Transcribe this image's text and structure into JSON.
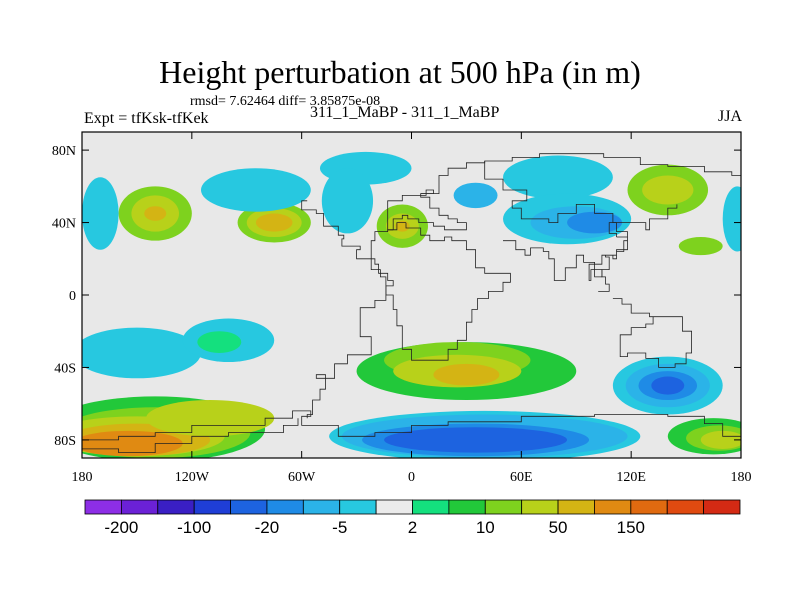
{
  "chart_data": {
    "type": "heatmap",
    "title": "Height perturbation at 500 hPa (in m)",
    "stats": "rmsd= 7.62464 diff= 3.85875e-08",
    "left_label": "Expt = tfKsk-tfKek",
    "center_label": "311_1_MaBP - 311_1_MaBP",
    "right_label": "JJA",
    "x_ticks": [
      {
        "value": -180,
        "label": "180"
      },
      {
        "value": -120,
        "label": "120W"
      },
      {
        "value": -60,
        "label": "60W"
      },
      {
        "value": 0,
        "label": "0"
      },
      {
        "value": 60,
        "label": "60E"
      },
      {
        "value": 120,
        "label": "120E"
      },
      {
        "value": 180,
        "label": "180"
      }
    ],
    "y_ticks": [
      {
        "value": 80,
        "label": "80N"
      },
      {
        "value": 40,
        "label": "40N"
      },
      {
        "value": 0,
        "label": "0"
      },
      {
        "value": -40,
        "label": "40S"
      },
      {
        "value": -80,
        "label": "80S"
      }
    ],
    "xlim": [
      -180,
      180
    ],
    "ylim": [
      -90,
      90
    ],
    "colorbar": {
      "colors": [
        "#8d2ee6",
        "#6b21d6",
        "#3a1fc4",
        "#1f3ed6",
        "#1d63e0",
        "#1f8be6",
        "#2bb3e8",
        "#27c8e0",
        "#ebebeb",
        "#14e07e",
        "#22c83a",
        "#7ed21e",
        "#b8d11a",
        "#d4b414",
        "#e08a12",
        "#e06a10",
        "#e04a10",
        "#d42a14"
      ],
      "labels": [
        {
          "after_box": 1,
          "text": "-200"
        },
        {
          "after_box": 3,
          "text": "-100"
        },
        {
          "after_box": 5,
          "text": "-20"
        },
        {
          "after_box": 7,
          "text": "-5"
        },
        {
          "after_box": 9,
          "text": "2"
        },
        {
          "after_box": 11,
          "text": "10"
        },
        {
          "after_box": 13,
          "text": "50"
        },
        {
          "after_box": 15,
          "text": "150"
        }
      ]
    },
    "field_blobs": [
      {
        "lon": -75,
        "lat": 40,
        "rx": 20,
        "ry": 11,
        "level": 3
      },
      {
        "lon": -75,
        "lat": 40,
        "rx": 15,
        "ry": 8,
        "level": 4
      },
      {
        "lon": -75,
        "lat": 40,
        "rx": 10,
        "ry": 5,
        "level": 5
      },
      {
        "lon": -140,
        "lat": 45,
        "rx": 20,
        "ry": 15,
        "level": 3
      },
      {
        "lon": -140,
        "lat": 45,
        "rx": 13,
        "ry": 10,
        "level": 4
      },
      {
        "lon": -140,
        "lat": 45,
        "rx": 6,
        "ry": 4,
        "level": 5
      },
      {
        "lon": -5,
        "lat": 38,
        "rx": 14,
        "ry": 12,
        "level": 3
      },
      {
        "lon": -5,
        "lat": 38,
        "rx": 9,
        "ry": 7,
        "level": 4
      },
      {
        "lon": -5,
        "lat": 38,
        "rx": 4,
        "ry": 3,
        "level": 5
      },
      {
        "lon": 140,
        "lat": 58,
        "rx": 22,
        "ry": 14,
        "level": 3
      },
      {
        "lon": 140,
        "lat": 58,
        "rx": 14,
        "ry": 8,
        "level": 4
      },
      {
        "lon": 158,
        "lat": 27,
        "rx": 12,
        "ry": 5,
        "level": 3
      },
      {
        "lon": -25,
        "lat": 70,
        "rx": 25,
        "ry": 9,
        "level": -1
      },
      {
        "lon": 80,
        "lat": 65,
        "rx": 30,
        "ry": 12,
        "level": -1
      },
      {
        "lon": 85,
        "lat": 42,
        "rx": 35,
        "ry": 14,
        "level": -1
      },
      {
        "lon": 90,
        "lat": 40,
        "rx": 25,
        "ry": 9,
        "level": -2
      },
      {
        "lon": 100,
        "lat": 40,
        "rx": 15,
        "ry": 6,
        "level": -3
      },
      {
        "lon": 35,
        "lat": 55,
        "rx": 12,
        "ry": 7,
        "level": -2
      },
      {
        "lon": -170,
        "lat": 45,
        "rx": 10,
        "ry": 20,
        "level": -1
      },
      {
        "lon": -85,
        "lat": 58,
        "rx": 30,
        "ry": 12,
        "level": -1
      },
      {
        "lon": -35,
        "lat": 52,
        "rx": 14,
        "ry": 18,
        "level": -1
      },
      {
        "lon": 178,
        "lat": 42,
        "rx": 8,
        "ry": 18,
        "level": -1
      },
      {
        "lon": -150,
        "lat": -32,
        "rx": 35,
        "ry": 14,
        "level": -1
      },
      {
        "lon": -100,
        "lat": -25,
        "rx": 25,
        "ry": 12,
        "level": -1
      },
      {
        "lon": -105,
        "lat": -26,
        "rx": 12,
        "ry": 6,
        "level": 1
      },
      {
        "lon": 30,
        "lat": -42,
        "rx": 60,
        "ry": 16,
        "level": 2
      },
      {
        "lon": 25,
        "lat": -36,
        "rx": 40,
        "ry": 10,
        "level": 3
      },
      {
        "lon": 25,
        "lat": -42,
        "rx": 35,
        "ry": 9,
        "level": 4
      },
      {
        "lon": 30,
        "lat": -44,
        "rx": 18,
        "ry": 6,
        "level": 5
      },
      {
        "lon": -140,
        "lat": -74,
        "rx": 60,
        "ry": 18,
        "level": 2
      },
      {
        "lon": -140,
        "lat": -76,
        "rx": 52,
        "ry": 14,
        "level": 3
      },
      {
        "lon": -150,
        "lat": -78,
        "rx": 48,
        "ry": 11,
        "level": 4
      },
      {
        "lon": -150,
        "lat": -80,
        "rx": 40,
        "ry": 9,
        "level": 5
      },
      {
        "lon": -155,
        "lat": -82,
        "rx": 30,
        "ry": 7,
        "level": 6
      },
      {
        "lon": -110,
        "lat": -68,
        "rx": 35,
        "ry": 10,
        "level": 4
      },
      {
        "lon": 40,
        "lat": -78,
        "rx": 85,
        "ry": 14,
        "level": -1
      },
      {
        "lon": 40,
        "lat": -78,
        "rx": 78,
        "ry": 12,
        "level": -2
      },
      {
        "lon": 35,
        "lat": -80,
        "rx": 62,
        "ry": 9,
        "level": -3
      },
      {
        "lon": 35,
        "lat": -80,
        "rx": 50,
        "ry": 7,
        "level": -4
      },
      {
        "lon": 140,
        "lat": -50,
        "rx": 30,
        "ry": 16,
        "level": -1
      },
      {
        "lon": 140,
        "lat": -50,
        "rx": 23,
        "ry": 12,
        "level": -2
      },
      {
        "lon": 140,
        "lat": -50,
        "rx": 16,
        "ry": 8,
        "level": -3
      },
      {
        "lon": 140,
        "lat": -50,
        "rx": 9,
        "ry": 5,
        "level": -4
      },
      {
        "lon": 165,
        "lat": -78,
        "rx": 25,
        "ry": 10,
        "level": 2
      },
      {
        "lon": 168,
        "lat": -79,
        "rx": 18,
        "ry": 7,
        "level": 3
      },
      {
        "lon": 170,
        "lat": -80,
        "rx": 12,
        "ry": 5,
        "level": 4
      }
    ],
    "coastlines": [
      [
        [
          -57,
          52
        ],
        [
          -60,
          47
        ],
        [
          -52,
          45
        ],
        [
          -48,
          38
        ],
        [
          -40,
          33
        ],
        [
          -37,
          31
        ],
        [
          -38,
          27
        ],
        [
          -28,
          25
        ],
        [
          -30,
          20
        ],
        [
          -20,
          17
        ],
        [
          -18,
          12
        ],
        [
          -13,
          8
        ],
        [
          -10,
          5
        ],
        [
          -14,
          -3
        ],
        [
          -20,
          -7
        ],
        [
          -28,
          -10
        ],
        [
          -28,
          -23
        ],
        [
          -22,
          -33
        ],
        [
          -35,
          -38
        ],
        [
          -42,
          -46
        ],
        [
          -52,
          -44
        ],
        [
          -47,
          -52
        ],
        [
          -50,
          -58
        ],
        [
          -54,
          -66
        ],
        [
          -57,
          -68
        ]
      ],
      [
        [
          -3,
          40
        ],
        [
          -8,
          36
        ],
        [
          -13,
          35
        ],
        [
          -20,
          30
        ],
        [
          -22,
          24
        ],
        [
          -22,
          14
        ],
        [
          -17,
          10
        ],
        [
          -14,
          0
        ],
        [
          -10,
          -8
        ],
        [
          -8,
          -17
        ],
        [
          -5,
          -30
        ],
        [
          0,
          -36
        ],
        [
          8,
          -36
        ],
        [
          15,
          -36
        ],
        [
          20,
          -30
        ],
        [
          25,
          -25
        ],
        [
          30,
          -15
        ],
        [
          33,
          -8
        ],
        [
          36,
          -2
        ],
        [
          42,
          2
        ],
        [
          50,
          7
        ],
        [
          54,
          12
        ],
        [
          46,
          12
        ],
        [
          40,
          15
        ],
        [
          35,
          25
        ],
        [
          30,
          30
        ],
        [
          22,
          32
        ],
        [
          18,
          30
        ],
        [
          10,
          33
        ],
        [
          5,
          37
        ],
        [
          -3,
          40
        ]
      ],
      [
        [
          -10,
          36
        ],
        [
          -13,
          52
        ],
        [
          -5,
          55
        ],
        [
          8,
          58
        ],
        [
          12,
          56
        ],
        [
          5,
          54
        ],
        [
          10,
          48
        ],
        [
          15,
          44
        ],
        [
          20,
          42
        ],
        [
          25,
          40
        ],
        [
          30,
          36
        ],
        [
          22,
          36
        ],
        [
          18,
          38
        ],
        [
          12,
          40
        ],
        [
          4,
          42
        ],
        [
          -2,
          44
        ],
        [
          -5,
          42
        ],
        [
          -10,
          36
        ]
      ],
      [
        [
          5,
          56
        ],
        [
          15,
          66
        ],
        [
          20,
          70
        ],
        [
          30,
          73
        ],
        [
          40,
          74
        ],
        [
          55,
          76
        ],
        [
          70,
          78
        ],
        [
          90,
          78
        ],
        [
          105,
          76
        ],
        [
          125,
          72
        ],
        [
          140,
          71
        ],
        [
          160,
          68
        ],
        [
          175,
          66
        ],
        [
          180,
          65
        ]
      ],
      [
        [
          40,
          74
        ],
        [
          40,
          64
        ],
        [
          50,
          58
        ],
        [
          60,
          58
        ],
        [
          63,
          52
        ],
        [
          55,
          48
        ],
        [
          60,
          42
        ],
        [
          75,
          40
        ],
        [
          80,
          45
        ],
        [
          90,
          50
        ],
        [
          100,
          45
        ],
        [
          110,
          40
        ],
        [
          120,
          40
        ],
        [
          128,
          36
        ],
        [
          130,
          42
        ],
        [
          140,
          48
        ],
        [
          145,
          50
        ]
      ],
      [
        [
          50,
          30
        ],
        [
          57,
          25
        ],
        [
          62,
          22
        ],
        [
          65,
          26
        ],
        [
          72,
          24
        ],
        [
          75,
          20
        ],
        [
          78,
          8
        ],
        [
          84,
          15
        ],
        [
          90,
          22
        ],
        [
          94,
          18
        ],
        [
          100,
          14
        ],
        [
          104,
          10
        ],
        [
          106,
          6
        ],
        [
          108,
          2
        ],
        [
          102,
          2
        ]
      ],
      [
        [
          110,
          -2
        ],
        [
          115,
          -5
        ],
        [
          120,
          -10
        ],
        [
          130,
          -12
        ],
        [
          136,
          -12
        ],
        [
          142,
          -12
        ],
        [
          148,
          -20
        ],
        [
          153,
          -25
        ],
        [
          153,
          -32
        ],
        [
          150,
          -38
        ],
        [
          144,
          -40
        ],
        [
          135,
          -35
        ],
        [
          128,
          -32
        ],
        [
          118,
          -34
        ],
        [
          114,
          -28
        ],
        [
          114,
          -22
        ],
        [
          120,
          -18
        ],
        [
          128,
          -16
        ],
        [
          132,
          -12
        ]
      ],
      [
        [
          -180,
          -80
        ],
        [
          -160,
          -78
        ],
        [
          -140,
          -76
        ],
        [
          -120,
          -72
        ],
        [
          -100,
          -72
        ],
        [
          -80,
          -68
        ],
        [
          -65,
          -64
        ],
        [
          -58,
          -64
        ],
        [
          -55,
          -67
        ],
        [
          -60,
          -72
        ],
        [
          -40,
          -78
        ],
        [
          -20,
          -76
        ],
        [
          0,
          -72
        ],
        [
          20,
          -70
        ],
        [
          40,
          -70
        ],
        [
          60,
          -67
        ],
        [
          80,
          -67
        ],
        [
          100,
          -66
        ],
        [
          120,
          -66
        ],
        [
          140,
          -67
        ],
        [
          160,
          -71
        ],
        [
          170,
          -75
        ],
        [
          170,
          -78
        ],
        [
          180,
          -80
        ]
      ],
      [
        [
          -180,
          -85
        ],
        [
          -160,
          -87
        ],
        [
          -140,
          -82
        ],
        [
          -120,
          -78
        ],
        [
          -100,
          -76
        ],
        [
          -80,
          -76
        ],
        [
          -70,
          -72
        ],
        [
          -62,
          -68
        ]
      ],
      [
        [
          112,
          32
        ],
        [
          118,
          25
        ],
        [
          112,
          22
        ],
        [
          106,
          21
        ],
        [
          108,
          14
        ],
        [
          104,
          10
        ],
        [
          100,
          14
        ],
        [
          98,
          8
        ],
        [
          97,
          17
        ],
        [
          104,
          22
        ],
        [
          110,
          20
        ],
        [
          112,
          24
        ],
        [
          116,
          30
        ],
        [
          118,
          35
        ],
        [
          112,
          40
        ],
        [
          108,
          34
        ],
        [
          112,
          32
        ]
      ]
    ]
  }
}
